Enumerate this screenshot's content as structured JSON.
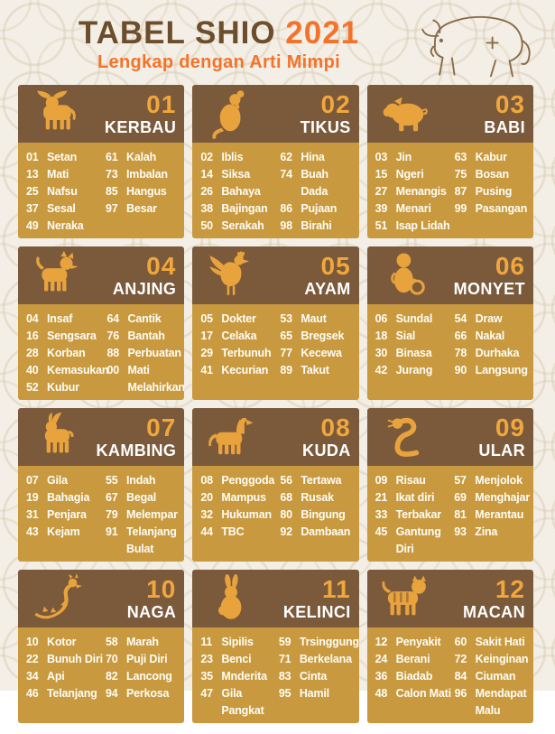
{
  "header": {
    "title": "TABEL SHIO",
    "year": "2021",
    "subtitle": "Lengkap dengan Arti Mimpi",
    "illustration": "ox-line-art-icon"
  },
  "colors": {
    "card_header_brown": "#7B5A3C",
    "card_body_gold": "#C8993E",
    "number_orange": "#F2A73B",
    "accent_orange": "#F4732A",
    "title_brown": "#6C4E2D",
    "background_cream": "#F3EFE6",
    "icon_gold": "#E8A33C",
    "text_white": "#FFFFFF"
  },
  "cards": [
    {
      "number": "01",
      "name": "KERBAU",
      "icon": "ox-icon",
      "left": [
        {
          "num": "01",
          "word": "Setan"
        },
        {
          "num": "13",
          "word": "Mati"
        },
        {
          "num": "25",
          "word": "Nafsu"
        },
        {
          "num": "37",
          "word": "Sesal"
        },
        {
          "num": "49",
          "word": "Neraka"
        }
      ],
      "right": [
        {
          "num": "61",
          "word": "Kalah"
        },
        {
          "num": "73",
          "word": "Imbalan"
        },
        {
          "num": "85",
          "word": "Hangus"
        },
        {
          "num": "97",
          "word": "Besar"
        }
      ]
    },
    {
      "number": "02",
      "name": "TIKUS",
      "icon": "rat-icon",
      "left": [
        {
          "num": "02",
          "word": "Iblis"
        },
        {
          "num": "14",
          "word": "Siksa"
        },
        {
          "num": "26",
          "word": "Bahaya"
        },
        {
          "num": "38",
          "word": "Bajingan"
        },
        {
          "num": "50",
          "word": "Serakah"
        }
      ],
      "right": [
        {
          "num": "62",
          "word": "Hina"
        },
        {
          "num": "74",
          "word": "Buah Dada"
        },
        {
          "num": "86",
          "word": "Pujaan"
        },
        {
          "num": "98",
          "word": "Birahi"
        }
      ]
    },
    {
      "number": "03",
      "name": "BABI",
      "icon": "pig-icon",
      "left": [
        {
          "num": "03",
          "word": "Jin"
        },
        {
          "num": "15",
          "word": "Ngeri"
        },
        {
          "num": "27",
          "word": "Menangis"
        },
        {
          "num": "39",
          "word": "Menari"
        },
        {
          "num": "51",
          "word": "Isap Lidah"
        }
      ],
      "right": [
        {
          "num": "63",
          "word": "Kabur"
        },
        {
          "num": "75",
          "word": "Bosan"
        },
        {
          "num": "87",
          "word": "Pusing"
        },
        {
          "num": "99",
          "word": "Pasangan"
        }
      ]
    },
    {
      "number": "04",
      "name": "ANJING",
      "icon": "dog-icon",
      "left": [
        {
          "num": "04",
          "word": "Insaf"
        },
        {
          "num": "16",
          "word": "Sengsara"
        },
        {
          "num": "28",
          "word": "Korban"
        },
        {
          "num": "40",
          "word": "Kemasukan"
        },
        {
          "num": "52",
          "word": "Kubur"
        }
      ],
      "right": [
        {
          "num": "64",
          "word": "Cantik"
        },
        {
          "num": "76",
          "word": "Bantah"
        },
        {
          "num": "88",
          "word": "Perbuatan"
        },
        {
          "num": "00",
          "word": "Mati Melahirkan"
        }
      ]
    },
    {
      "number": "05",
      "name": "AYAM",
      "icon": "rooster-icon",
      "left": [
        {
          "num": "05",
          "word": "Dokter"
        },
        {
          "num": "17",
          "word": "Celaka"
        },
        {
          "num": "29",
          "word": "Terbunuh"
        },
        {
          "num": "41",
          "word": "Kecurian"
        }
      ],
      "right": [
        {
          "num": "53",
          "word": "Maut"
        },
        {
          "num": "65",
          "word": "Bregsek"
        },
        {
          "num": "77",
          "word": "Kecewa"
        },
        {
          "num": "89",
          "word": "Takut"
        }
      ]
    },
    {
      "number": "06",
      "name": "MONYET",
      "icon": "monkey-icon",
      "left": [
        {
          "num": "06",
          "word": "Sundal"
        },
        {
          "num": "18",
          "word": "Sial"
        },
        {
          "num": "30",
          "word": "Binasa"
        },
        {
          "num": "42",
          "word": "Jurang"
        }
      ],
      "right": [
        {
          "num": "54",
          "word": "Draw"
        },
        {
          "num": "66",
          "word": "Nakal"
        },
        {
          "num": "78",
          "word": "Durhaka"
        },
        {
          "num": "90",
          "word": "Langsung"
        }
      ]
    },
    {
      "number": "07",
      "name": "KAMBING",
      "icon": "goat-icon",
      "left": [
        {
          "num": "07",
          "word": "Gila"
        },
        {
          "num": "19",
          "word": "Bahagia"
        },
        {
          "num": "31",
          "word": "Penjara"
        },
        {
          "num": "43",
          "word": "Kejam"
        }
      ],
      "right": [
        {
          "num": "55",
          "word": "Indah"
        },
        {
          "num": "67",
          "word": "Begal"
        },
        {
          "num": "79",
          "word": "Melempar"
        },
        {
          "num": "91",
          "word": "Telanjang Bulat"
        }
      ]
    },
    {
      "number": "08",
      "name": "KUDA",
      "icon": "horse-icon",
      "left": [
        {
          "num": "08",
          "word": "Penggoda"
        },
        {
          "num": "20",
          "word": "Mampus"
        },
        {
          "num": "32",
          "word": "Hukuman"
        },
        {
          "num": "44",
          "word": "TBC"
        }
      ],
      "right": [
        {
          "num": "56",
          "word": "Tertawa"
        },
        {
          "num": "68",
          "word": "Rusak"
        },
        {
          "num": "80",
          "word": "Bingung"
        },
        {
          "num": "92",
          "word": "Dambaan"
        }
      ]
    },
    {
      "number": "09",
      "name": "ULAR",
      "icon": "snake-icon",
      "left": [
        {
          "num": "09",
          "word": "Risau"
        },
        {
          "num": "21",
          "word": "Ikat diri"
        },
        {
          "num": "33",
          "word": "Terbakar"
        },
        {
          "num": "45",
          "word": "Gantung Diri"
        }
      ],
      "right": [
        {
          "num": "57",
          "word": "Menjolok"
        },
        {
          "num": "69",
          "word": "Menghajar"
        },
        {
          "num": "81",
          "word": "Merantau"
        },
        {
          "num": "93",
          "word": "Zina"
        }
      ]
    },
    {
      "number": "10",
      "name": "NAGA",
      "icon": "dragon-icon",
      "left": [
        {
          "num": "10",
          "word": "Kotor"
        },
        {
          "num": "22",
          "word": "Bunuh Diri"
        },
        {
          "num": "34",
          "word": "Api"
        },
        {
          "num": "46",
          "word": "Telanjang"
        }
      ],
      "right": [
        {
          "num": "58",
          "word": "Marah"
        },
        {
          "num": "70",
          "word": "Puji Diri"
        },
        {
          "num": "82",
          "word": "Lancong"
        },
        {
          "num": "94",
          "word": "Perkosa"
        }
      ]
    },
    {
      "number": "11",
      "name": "KELINCI",
      "icon": "rabbit-icon",
      "left": [
        {
          "num": "11",
          "word": "Sipilis"
        },
        {
          "num": "23",
          "word": "Benci"
        },
        {
          "num": "35",
          "word": "Mnderita"
        },
        {
          "num": "47",
          "word": "Gila Pangkat"
        }
      ],
      "right": [
        {
          "num": "59",
          "word": "Trsinggung"
        },
        {
          "num": "71",
          "word": "Berkelana"
        },
        {
          "num": "83",
          "word": "Cinta"
        },
        {
          "num": "95",
          "word": "Hamil"
        }
      ]
    },
    {
      "number": "12",
      "name": "MACAN",
      "icon": "tiger-icon",
      "left": [
        {
          "num": "12",
          "word": "Penyakit"
        },
        {
          "num": "24",
          "word": "Berani"
        },
        {
          "num": "36",
          "word": "Biadab"
        },
        {
          "num": "48",
          "word": "Calon Mati"
        }
      ],
      "right": [
        {
          "num": "60",
          "word": "Sakit Hati"
        },
        {
          "num": "72",
          "word": "Keinginan"
        },
        {
          "num": "84",
          "word": "Ciuman"
        },
        {
          "num": "96",
          "word": "Mendapat Malu"
        }
      ]
    }
  ]
}
